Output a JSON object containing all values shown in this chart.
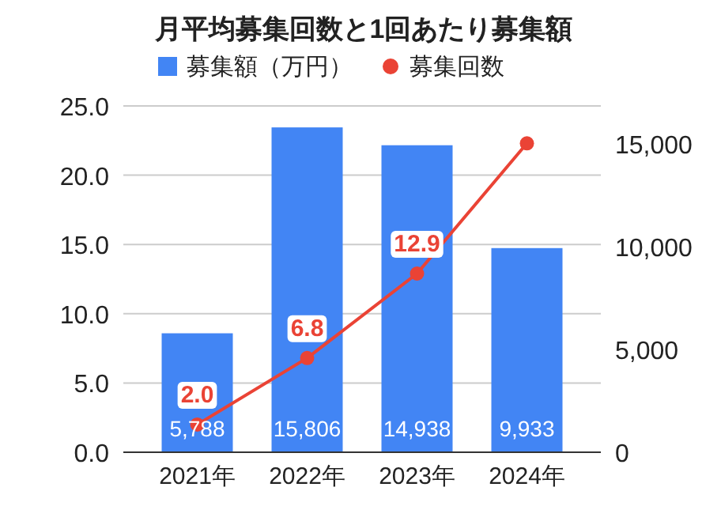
{
  "chart_data": {
    "type": "bar",
    "title": "月平均募集回数と1回あたり募集額",
    "categories": [
      "2021年",
      "2022年",
      "2023年",
      "2024年"
    ],
    "series": [
      {
        "name": "募集額（万円）",
        "type": "bar",
        "axis": "y2",
        "color": "#4285f4",
        "values": [
          5788,
          15806,
          14938,
          9933
        ],
        "value_labels": [
          "5,788",
          "15,806",
          "14,938",
          "9,933"
        ]
      },
      {
        "name": "募集回数",
        "type": "line",
        "color": "#ea4335",
        "values": [
          2.0,
          6.8,
          12.9,
          22.3
        ],
        "value_labels": [
          "2.0",
          "6.8",
          "12.9",
          null
        ]
      }
    ],
    "ylim": [
      0,
      25
    ],
    "yticks": [
      {
        "value": 0,
        "label": "0.0"
      },
      {
        "value": 5,
        "label": "5.0"
      },
      {
        "value": 10,
        "label": "10.0"
      },
      {
        "value": 15,
        "label": "15.0"
      },
      {
        "value": 20,
        "label": "20.0"
      },
      {
        "value": 25,
        "label": "25.0"
      }
    ],
    "y2lim": [
      0,
      16850
    ],
    "y2ticks": [
      0,
      {
        "value": 5000,
        "label": "5,000"
      },
      {
        "value": 10000,
        "label": "10,000"
      },
      {
        "value": 15000,
        "label": "15,000"
      }
    ],
    "grid": "y",
    "legend": "top",
    "marker": "circle"
  }
}
